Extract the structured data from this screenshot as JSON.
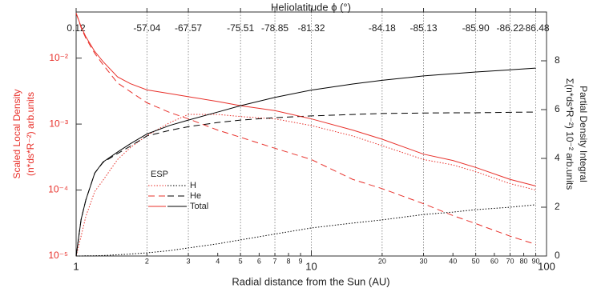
{
  "chart_data": {
    "type": "line",
    "top_xlabel": "Heliolatitude ϕ (°)",
    "xlabel": "Radial distance from the Sun (AU)",
    "ylabel": [
      "Scaled Local Density",
      "(n*ds*R⁻²)  arb.units"
    ],
    "y2label": [
      "Partial Density Integral",
      "Σ(n*ds*R⁻²) 10⁻² arb.units"
    ],
    "xscale": "log",
    "yscale": "log",
    "xlim": [
      1,
      100
    ],
    "ylim": [
      1e-05,
      0.05
    ],
    "y2lim": [
      0,
      10
    ],
    "xticks": [
      1,
      2,
      3,
      4,
      5,
      6,
      7,
      8,
      9,
      10,
      20,
      30,
      40,
      50,
      60,
      70,
      80,
      90,
      100
    ],
    "top_xticks": [
      {
        "value": 1,
        "label": "0.12"
      },
      {
        "value": 2,
        "label": "-57.04"
      },
      {
        "value": 3,
        "label": "-67.57"
      },
      {
        "value": 5,
        "label": "-75.51"
      },
      {
        "value": 7,
        "label": "-78.85"
      },
      {
        "value": 10,
        "label": "-81.32"
      },
      {
        "value": 20,
        "label": "-84.18"
      },
      {
        "value": 30,
        "label": "-85.13"
      },
      {
        "value": 50,
        "label": "-85.90"
      },
      {
        "value": 70,
        "label": "-86.22"
      },
      {
        "value": 90,
        "label": "-86.48"
      }
    ],
    "yticks": [
      {
        "value": 1e-05,
        "label": "10⁻⁵"
      },
      {
        "value": 0.0001,
        "label": "10⁻⁴"
      },
      {
        "value": 0.001,
        "label": "10⁻³"
      },
      {
        "value": 0.01,
        "label": "10⁻²"
      }
    ],
    "y2ticks": [
      0,
      2,
      4,
      6,
      8
    ],
    "ylabel_color": "#e8302a",
    "grid": true,
    "legend_title": "ESP",
    "legend": "lower-left",
    "x": [
      1,
      1.05,
      1.1,
      1.2,
      1.3,
      1.5,
      1.7,
      2,
      2.5,
      3,
      4,
      5,
      7,
      10,
      15,
      20,
      30,
      40,
      50,
      70,
      90
    ],
    "series": [
      {
        "name": "H",
        "dash": "dotted",
        "color": "#e8302a",
        "integral_color": "#000000",
        "values": [
          1e-05,
          2e-05,
          4e-05,
          9.5e-05,
          0.00014,
          0.00029,
          0.00044,
          0.00067,
          0.00105,
          0.0014,
          0.0014,
          0.0013,
          0.0012,
          0.00095,
          0.00066,
          0.00047,
          0.00029,
          0.00024,
          0.00019,
          0.000125,
          0.0001
        ],
        "integral": [
          0,
          0,
          0.01,
          0.01,
          0.02,
          0.05,
          0.08,
          0.13,
          0.22,
          0.33,
          0.5,
          0.66,
          0.9,
          1.15,
          1.35,
          1.48,
          1.7,
          1.8,
          1.9,
          2.0,
          2.1
        ]
      },
      {
        "name": "He",
        "dash": "dashed",
        "color": "#e8302a",
        "integral_color": "#000000",
        "values": [
          0.048,
          0.029,
          0.02,
          0.0118,
          0.008,
          0.0042,
          0.0031,
          0.0021,
          0.0015,
          0.0012,
          0.00081,
          0.00063,
          0.00043,
          0.00029,
          0.000145,
          0.000105,
          6.2e-05,
          4.1e-05,
          3.1e-05,
          2e-05,
          1.5e-05
        ],
        "integral": [
          0,
          1.5,
          2.3,
          3.4,
          3.83,
          4.2,
          4.5,
          4.92,
          5.15,
          5.3,
          5.47,
          5.57,
          5.67,
          5.74,
          5.8,
          5.84,
          5.86,
          5.87,
          5.87,
          5.89,
          5.9
        ]
      },
      {
        "name": "Total",
        "dash": "solid",
        "color": "#e8302a",
        "integral_color": "#000000",
        "values": [
          0.048,
          0.03,
          0.021,
          0.0126,
          0.0089,
          0.0052,
          0.0041,
          0.0033,
          0.0029,
          0.0026,
          0.0022,
          0.0019,
          0.0016,
          0.0012,
          0.00081,
          0.00059,
          0.00035,
          0.00028,
          0.00022,
          0.000145,
          0.000115
        ],
        "integral": [
          0,
          1.5,
          2.3,
          3.4,
          3.85,
          4.26,
          4.6,
          5.0,
          5.35,
          5.57,
          5.9,
          6.16,
          6.5,
          6.8,
          7.05,
          7.2,
          7.38,
          7.47,
          7.54,
          7.63,
          7.7
        ]
      }
    ]
  }
}
